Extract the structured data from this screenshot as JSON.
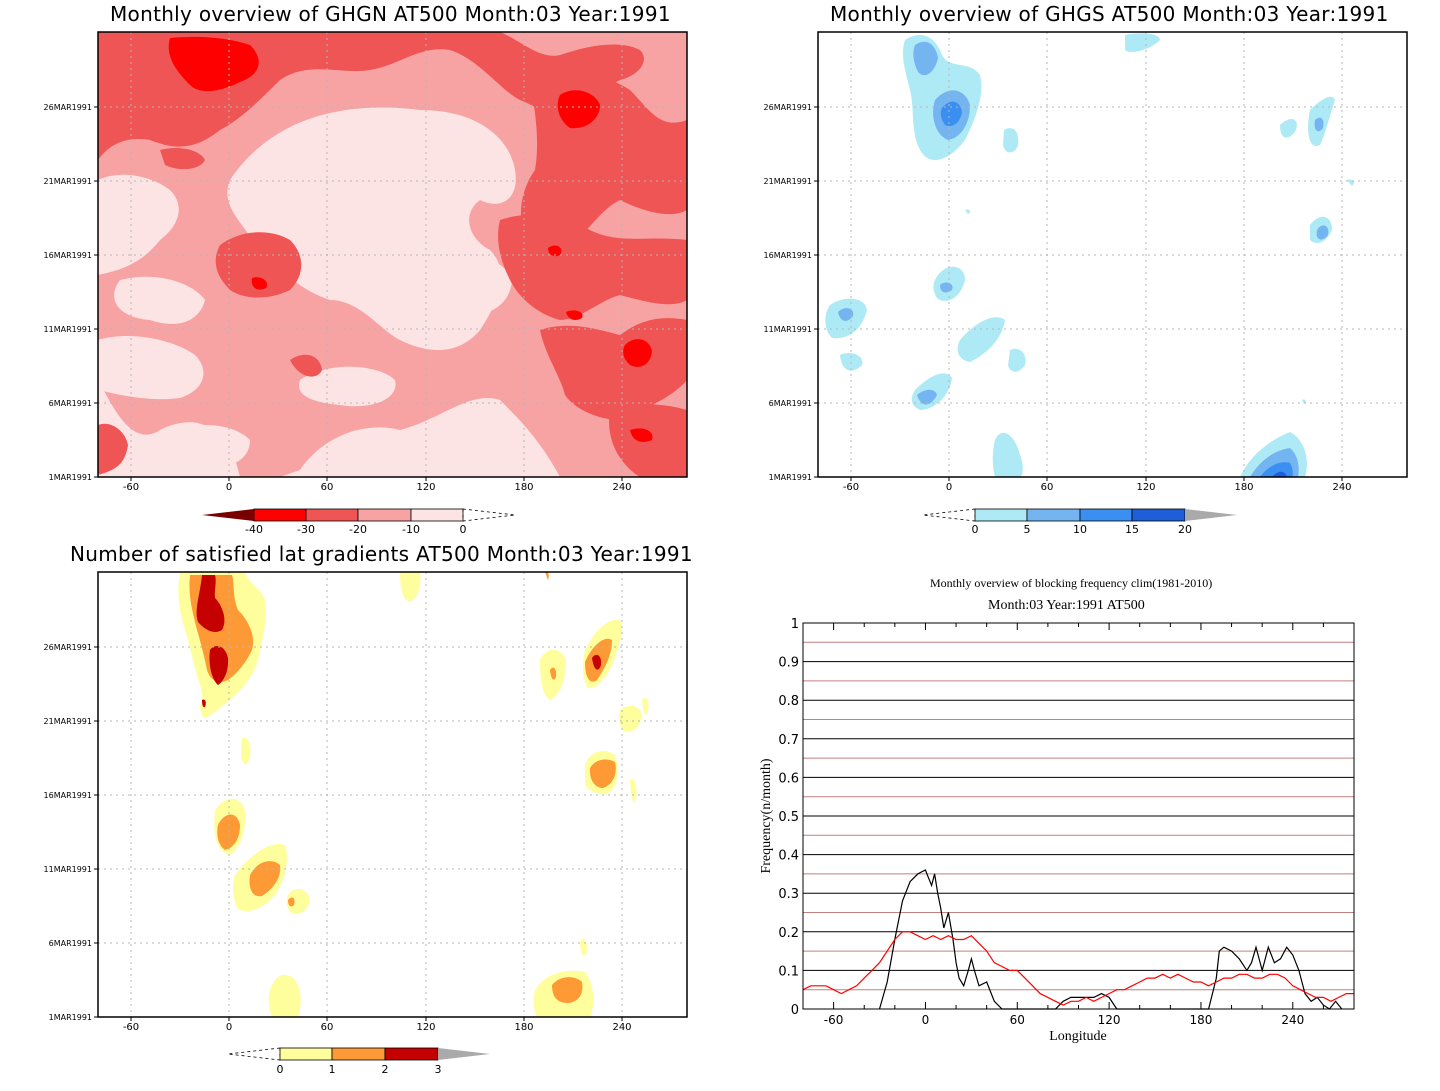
{
  "panels": {
    "ghgn": {
      "title": "Monthly overview of GHGN AT500 Month:03 Year:1991",
      "xticks": [
        "-60",
        "0",
        "60",
        "120",
        "180",
        "240"
      ],
      "yticks": [
        "1MAR1991",
        "6MAR1991",
        "11MAR1991",
        "16MAR1991",
        "21MAR1991",
        "26MAR1991"
      ],
      "colorbar": {
        "labels": [
          "-40",
          "-30",
          "-20",
          "-10",
          "0"
        ],
        "colors": [
          "#7a0000",
          "#ff0000",
          "#f05555",
          "#f8a3a3",
          "#fde4e4"
        ]
      }
    },
    "ghgs": {
      "title": "Monthly overview of GHGS AT500 Month:03 Year:1991",
      "xticks": [
        "-60",
        "0",
        "60",
        "120",
        "180",
        "240"
      ],
      "yticks": [
        "1MAR1991",
        "6MAR1991",
        "11MAR1991",
        "16MAR1991",
        "21MAR1991",
        "26MAR1991"
      ],
      "colorbar": {
        "labels": [
          "0",
          "5",
          "10",
          "15",
          "20"
        ],
        "colors": [
          "#aeeaf5",
          "#74b4f0",
          "#3b8ff0",
          "#1e5ed8",
          "#aaaaaa"
        ]
      }
    },
    "gradients": {
      "title": "Number of satisfied lat gradients AT500 Month:03 Year:1991",
      "xticks": [
        "-60",
        "0",
        "60",
        "120",
        "180",
        "240"
      ],
      "yticks": [
        "1MAR1991",
        "6MAR1991",
        "11MAR1991",
        "16MAR1991",
        "21MAR1991",
        "26MAR1991"
      ],
      "colorbar": {
        "labels": [
          "0",
          "1",
          "2",
          "3"
        ],
        "colors": [
          "#fffe9c",
          "#fd9a35",
          "#c40000",
          "#aaaaaa"
        ]
      }
    },
    "frequency": {
      "title": "Monthly overview of blocking frequency clim(1981-2010)",
      "subtitle": "Month:03 Year:1991  AT500",
      "xlabel": "Longitude",
      "ylabel": "Frequency(n/month)",
      "xticks": [
        "-60",
        "0",
        "60",
        "120",
        "180",
        "240"
      ],
      "yticks": [
        "0",
        "0.1",
        "0.2",
        "0.3",
        "0.4",
        "0.5",
        "0.6",
        "0.7",
        "0.8",
        "0.9",
        "1"
      ]
    }
  },
  "chart_data": [
    {
      "type": "heatmap",
      "title": "Monthly overview of GHGN AT500 Month:03 Year:1991",
      "x_range": [
        -80,
        280
      ],
      "y_range": [
        "1MAR1991",
        "31MAR1991"
      ],
      "levels": [
        -40,
        -30,
        -20,
        -10,
        0
      ],
      "colors": [
        "#7a0000",
        "#ff0000",
        "#f05555",
        "#f8a3a3",
        "#fde4e4"
      ]
    },
    {
      "type": "heatmap",
      "title": "Monthly overview of GHGS AT500 Month:03 Year:1991",
      "x_range": [
        -80,
        280
      ],
      "y_range": [
        "1MAR1991",
        "31MAR1991"
      ],
      "levels": [
        0,
        5,
        10,
        15,
        20
      ],
      "colors": [
        "#aeeaf5",
        "#74b4f0",
        "#3b8ff0",
        "#1e5ed8",
        "#aaaaaa"
      ]
    },
    {
      "type": "heatmap",
      "title": "Number of satisfied lat gradients AT500 Month:03 Year:1991",
      "x_range": [
        -80,
        280
      ],
      "y_range": [
        "1MAR1991",
        "31MAR1991"
      ],
      "levels": [
        0,
        1,
        2,
        3
      ],
      "colors": [
        "#fffe9c",
        "#fd9a35",
        "#c40000",
        "#aaaaaa"
      ]
    },
    {
      "type": "line",
      "title": "Monthly overview of blocking frequency clim(1981-2010)",
      "subtitle": "Month:03 Year:1991  AT500",
      "xlabel": "Longitude",
      "ylabel": "Frequency(n/month)",
      "xlim": [
        -80,
        280
      ],
      "ylim": [
        0,
        1
      ],
      "series": [
        {
          "color": "#000000",
          "x": [
            -30,
            -25,
            -20,
            -15,
            -10,
            -5,
            0,
            2,
            4,
            6,
            8,
            10,
            12,
            15,
            18,
            20,
            22,
            25,
            28,
            30,
            32,
            35,
            40,
            45,
            50,
            55,
            60,
            65,
            70,
            75,
            80,
            85,
            90,
            95,
            100,
            105,
            110,
            115,
            120,
            125,
            130,
            135,
            140,
            145,
            150,
            155,
            160,
            165,
            170,
            175,
            180,
            185,
            190,
            192,
            195,
            200,
            205,
            210,
            213,
            216,
            220,
            224,
            228,
            232,
            236,
            240,
            244,
            248,
            252,
            256,
            260,
            264,
            268,
            272
          ],
          "y": [
            0,
            0.07,
            0.18,
            0.28,
            0.33,
            0.35,
            0.36,
            0.34,
            0.32,
            0.35,
            0.3,
            0.26,
            0.21,
            0.25,
            0.18,
            0.12,
            0.08,
            0.06,
            0.1,
            0.13,
            0.1,
            0.06,
            0.07,
            0.02,
            0,
            0,
            0,
            0,
            0,
            0,
            0,
            0,
            0.02,
            0.03,
            0.03,
            0.03,
            0.03,
            0.04,
            0.03,
            0,
            0,
            0,
            0,
            0,
            0,
            0,
            0,
            0,
            0,
            0,
            0,
            0,
            0.08,
            0.15,
            0.16,
            0.15,
            0.13,
            0.1,
            0.12,
            0.16,
            0.1,
            0.16,
            0.12,
            0.13,
            0.16,
            0.14,
            0.1,
            0.04,
            0.02,
            0.03,
            0.01,
            0,
            0.02,
            0
          ]
        },
        {
          "color": "#ff0000",
          "x": [
            -80,
            -75,
            -70,
            -65,
            -60,
            -55,
            -50,
            -45,
            -40,
            -35,
            -30,
            -25,
            -20,
            -15,
            -10,
            -5,
            0,
            5,
            10,
            15,
            20,
            25,
            30,
            35,
            40,
            45,
            50,
            55,
            60,
            65,
            70,
            75,
            80,
            85,
            90,
            95,
            100,
            105,
            110,
            115,
            120,
            125,
            130,
            135,
            140,
            145,
            150,
            155,
            160,
            165,
            170,
            175,
            180,
            185,
            190,
            195,
            200,
            205,
            210,
            215,
            220,
            225,
            230,
            235,
            240,
            245,
            250,
            255,
            260,
            265,
            270,
            275,
            280
          ],
          "y": [
            0.05,
            0.06,
            0.06,
            0.06,
            0.05,
            0.04,
            0.05,
            0.06,
            0.08,
            0.1,
            0.12,
            0.15,
            0.18,
            0.2,
            0.2,
            0.19,
            0.18,
            0.19,
            0.18,
            0.19,
            0.18,
            0.18,
            0.19,
            0.17,
            0.15,
            0.12,
            0.11,
            0.1,
            0.1,
            0.08,
            0.06,
            0.04,
            0.03,
            0.02,
            0.01,
            0.02,
            0.02,
            0.03,
            0.02,
            0.03,
            0.04,
            0.05,
            0.05,
            0.06,
            0.07,
            0.08,
            0.08,
            0.09,
            0.08,
            0.09,
            0.08,
            0.07,
            0.07,
            0.06,
            0.07,
            0.08,
            0.08,
            0.09,
            0.09,
            0.08,
            0.08,
            0.09,
            0.09,
            0.08,
            0.06,
            0.05,
            0.04,
            0.03,
            0.03,
            0.02,
            0.03,
            0.04,
            0.04
          ]
        }
      ]
    }
  ]
}
